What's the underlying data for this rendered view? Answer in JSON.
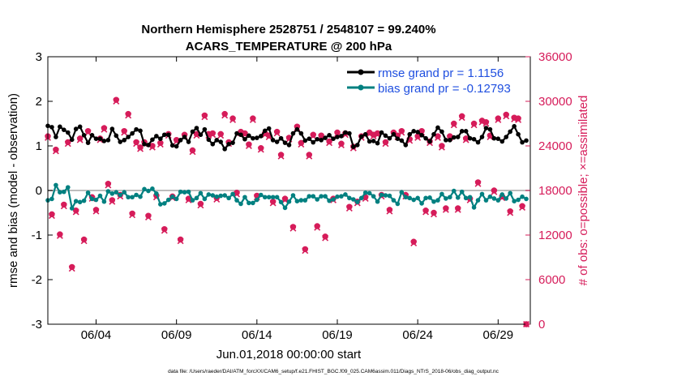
{
  "chart_data": {
    "type": "line",
    "title_line1": "Northern Hemisphere 2528751 / 2548107 = 99.240%",
    "title_line2": "ACARS_TEMPERATURE @ 200 hPa",
    "xlabel": "Jun.01,2018 00:00:00 start",
    "ylabel_left": "rmse and bias (model - observation)",
    "ylabel_right": "# of obs: o=possible; ×=assimilated",
    "footer": "data file: /Users/raeder/DAI/ATM_forcXX/CAM6_setup/f.e21.FHIST_BGC.f09_025.CAM6assim.011/Diags_NTrS_2018-06/obs_diag_output.nc",
    "xlim": [
      1.0,
      31.0
    ],
    "ylim_left": [
      -3,
      3
    ],
    "ylim_right": [
      0,
      36000
    ],
    "x_ticks": [
      {
        "value": 4,
        "label": "06/04"
      },
      {
        "value": 9,
        "label": "06/09"
      },
      {
        "value": 14,
        "label": "06/14"
      },
      {
        "value": 19,
        "label": "06/19"
      },
      {
        "value": 24,
        "label": "06/24"
      },
      {
        "value": 29,
        "label": "06/29"
      }
    ],
    "y_ticks_left": [
      {
        "value": 3,
        "label": "3"
      },
      {
        "value": 2,
        "label": "2"
      },
      {
        "value": 1,
        "label": "1"
      },
      {
        "value": 0,
        "label": "0"
      },
      {
        "value": -1,
        "label": "-1"
      },
      {
        "value": -2,
        "label": "-2"
      },
      {
        "value": -3,
        "label": "-3"
      }
    ],
    "y_ticks_right": [
      {
        "value": 36000,
        "label": "36000"
      },
      {
        "value": 30000,
        "label": "30000"
      },
      {
        "value": 24000,
        "label": "24000"
      },
      {
        "value": 18000,
        "label": "18000"
      },
      {
        "value": 12000,
        "label": "12000"
      },
      {
        "value": 6000,
        "label": "6000"
      },
      {
        "value": 0,
        "label": "0"
      }
    ],
    "time_step_days": 0.25,
    "legend": {
      "position": "top-right",
      "entries": [
        {
          "label": "rmse grand pr = 1.1156",
          "series": "rmse"
        },
        {
          "label": "bias grand pr = -0.12793",
          "series": "bias"
        }
      ]
    },
    "series": [
      {
        "name": "rmse",
        "color": "#000000",
        "marker": "circle",
        "values": [
          1.45,
          1.42,
          1.2,
          1.43,
          1.36,
          1.3,
          1.14,
          1.38,
          1.43,
          1.24,
          1.07,
          1.24,
          1.16,
          1.16,
          1.11,
          1.13,
          1.38,
          1.23,
          1.09,
          1.13,
          1.2,
          1.28,
          1.37,
          1.34,
          1.04,
          1.02,
          1.14,
          1.22,
          1.16,
          1.25,
          1.25,
          1.01,
          0.99,
          1.13,
          1.2,
          1.09,
          1.32,
          1.4,
          1.25,
          1.37,
          1.14,
          1.04,
          1.13,
          1.09,
          0.93,
          1.04,
          1.07,
          1.28,
          1.25,
          1.15,
          1.23,
          1.17,
          1.18,
          1.22,
          1.34,
          1.39,
          1.13,
          1.09,
          1.17,
          1.07,
          1.02,
          1.28,
          1.37,
          1.28,
          1.12,
          1.16,
          1.08,
          1.15,
          1.13,
          1.18,
          1.24,
          1.16,
          1.2,
          1.22,
          1.3,
          1.28,
          0.98,
          1.02,
          1.21,
          1.26,
          1.1,
          1.11,
          1.06,
          1.3,
          1.23,
          1.17,
          1.26,
          1.16,
          1.12,
          1.02,
          1.26,
          1.33,
          1.31,
          1.24,
          1.17,
          1.1,
          1.26,
          1.41,
          1.32,
          1.13,
          1.13,
          1.19,
          1.2,
          1.33,
          1.33,
          1.17,
          1.15,
          1.08,
          1.2,
          1.4,
          1.37,
          1.17,
          1.16,
          1.1,
          1.2,
          1.32,
          1.44,
          1.26,
          1.08,
          1.12
        ]
      },
      {
        "name": "bias",
        "color": "#008080",
        "marker": "circle",
        "values": [
          -0.22,
          -0.19,
          0.12,
          -0.04,
          -0.03,
          0.07,
          -0.4,
          -0.24,
          -0.26,
          -0.23,
          -0.05,
          -0.19,
          -0.21,
          -0.12,
          -0.25,
          -0.02,
          -0.07,
          -0.04,
          -0.1,
          -0.04,
          -0.15,
          -0.15,
          -0.1,
          -0.14,
          0.03,
          -0.01,
          0.04,
          -0.07,
          -0.31,
          -0.29,
          -0.21,
          -0.14,
          -0.19,
          -0.03,
          -0.04,
          -0.03,
          -0.22,
          -0.17,
          -0.06,
          -0.19,
          -0.09,
          -0.11,
          -0.14,
          -0.12,
          -0.11,
          -0.17,
          -0.08,
          -0.22,
          -0.3,
          -0.15,
          -0.28,
          -0.28,
          -0.21,
          -0.1,
          -0.15,
          -0.15,
          -0.15,
          -0.15,
          -0.26,
          -0.39,
          -0.25,
          -0.11,
          -0.24,
          -0.22,
          -0.22,
          -0.13,
          -0.13,
          -0.2,
          -0.13,
          -0.13,
          -0.23,
          -0.2,
          -0.14,
          -0.13,
          -0.09,
          -0.17,
          -0.2,
          -0.26,
          -0.17,
          -0.05,
          -0.06,
          -0.13,
          -0.25,
          -0.1,
          -0.11,
          -0.12,
          -0.22,
          -0.3,
          -0.04,
          -0.15,
          -0.17,
          -0.21,
          -0.17,
          -0.29,
          -0.17,
          -0.16,
          -0.25,
          -0.22,
          -0.08,
          -0.18,
          -0.15,
          -0.01,
          -0.16,
          -0.03,
          -0.17,
          -0.15,
          -0.38,
          -0.22,
          -0.08,
          -0.22,
          -0.14,
          -0.18,
          -0.22,
          -0.09,
          -0.18,
          -0.06,
          -0.24,
          -0.21,
          -0.14,
          -0.19
        ]
      },
      {
        "name": "possible",
        "color": "#d61c5a",
        "marker": "circle",
        "axis": "right",
        "values": [
          25300,
          14800,
          23500,
          12100,
          16100,
          24500,
          7700,
          15300,
          25000,
          11400,
          26000,
          17100,
          15400,
          25000,
          26400,
          18900,
          16700,
          30200,
          17400,
          26000,
          28300,
          14900,
          24500,
          23800,
          24500,
          14600,
          24000,
          17300,
          24400,
          12800,
          25600,
          17200,
          24800,
          11400,
          25500,
          16900,
          23400,
          25600,
          16200,
          28100,
          25600,
          25700,
          17000,
          25600,
          28300,
          24500,
          27700,
          17700,
          25900,
          25700,
          24200,
          27700,
          17300,
          23700,
          25700,
          25400,
          16500,
          25900,
          22800,
          16900,
          25100,
          13100,
          26600,
          24400,
          10100,
          22800,
          25500,
          13200,
          25400,
          11800,
          24600,
          16900,
          25800,
          24300,
          25700,
          15800,
          23900,
          16500,
          25300,
          17100,
          25800,
          25500,
          25700,
          17400,
          24500,
          15400,
          25800,
          25400,
          26000,
          17400,
          24900,
          11100,
          25300,
          26000,
          15300,
          24600,
          15000,
          25300,
          24000,
          15600,
          25300,
          27000,
          15600,
          28000,
          25000,
          16900,
          27000,
          19100,
          27400,
          27200,
          25400,
          18000,
          27700,
          17200,
          28200,
          15200,
          27800,
          27700,
          15900,
          0
        ]
      },
      {
        "name": "assimilated",
        "color": "#d61c5a",
        "marker": "x",
        "axis": "right",
        "values": [
          25100,
          14600,
          23300,
          11900,
          15900,
          24300,
          7500,
          15100,
          24800,
          11200,
          25800,
          16900,
          15200,
          24800,
          26200,
          18700,
          16500,
          30000,
          17200,
          25800,
          28100,
          14700,
          24300,
          23600,
          24300,
          14400,
          23800,
          17100,
          24200,
          12600,
          25400,
          17000,
          24600,
          11200,
          25300,
          16700,
          23200,
          25400,
          16000,
          27900,
          25400,
          25500,
          16800,
          25400,
          28100,
          24300,
          27500,
          17500,
          25700,
          25500,
          24000,
          27500,
          17100,
          23500,
          25500,
          25200,
          16300,
          25700,
          22600,
          16700,
          24900,
          12900,
          26400,
          24200,
          9900,
          22600,
          25300,
          13000,
          25200,
          11600,
          24400,
          16700,
          25600,
          24100,
          25500,
          15600,
          23700,
          16300,
          25100,
          16900,
          25600,
          25300,
          25500,
          17200,
          24300,
          15200,
          25600,
          25200,
          25800,
          17200,
          24700,
          10900,
          25100,
          25800,
          15100,
          24400,
          14800,
          25100,
          23800,
          15400,
          25100,
          26800,
          15400,
          27800,
          24800,
          16700,
          26800,
          18900,
          27200,
          27000,
          25200,
          17800,
          27500,
          17000,
          28000,
          15000,
          27600,
          27500,
          15700,
          0
        ]
      }
    ]
  }
}
